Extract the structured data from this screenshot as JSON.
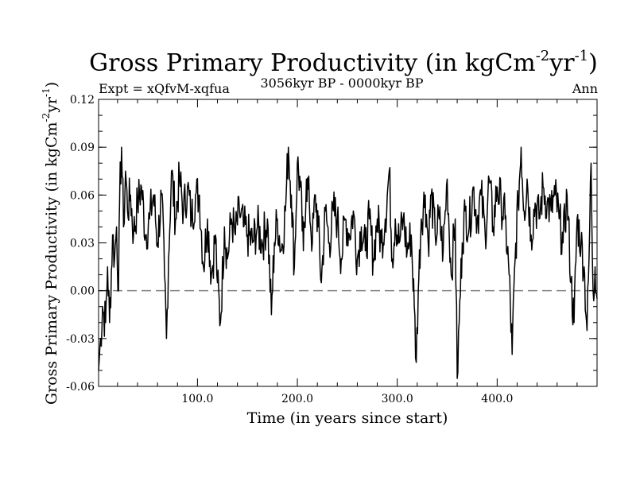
{
  "chart_data": {
    "type": "line",
    "title": {
      "main": "Gross Primary Productivity (in kgCm",
      "sup1": "-2",
      "mid": "yr",
      "sup2": "-1",
      "end": ")"
    },
    "subtitle_left": "Expt = xQfvM-xqfua",
    "subtitle_center": "3056kyr BP - 0000kyr BP",
    "subtitle_right": "Ann",
    "xlabel": "Time (in years since start)",
    "ylabel": {
      "main": "Gross Primary Productivity (in kgCm",
      "sup1": "-2",
      "mid": "yr",
      "sup2": "-1",
      "end": ")"
    },
    "xlim": [
      1,
      500
    ],
    "ylim": [
      -0.06,
      0.12
    ],
    "xticks": [
      100,
      200,
      300,
      400
    ],
    "xtick_labels": [
      "100.0",
      "200.0",
      "300.0",
      "400.0"
    ],
    "yticks": [
      -0.06,
      -0.03,
      0.0,
      0.03,
      0.06,
      0.09,
      0.12
    ],
    "ytick_labels": [
      "-0.06",
      "-0.03",
      "0.00",
      "0.03",
      "0.06",
      "0.09",
      "0.12"
    ],
    "zero_line": {
      "value": 0.0,
      "style": "dashed",
      "color": "#808080"
    },
    "line_color": "#000000",
    "series": [
      {
        "name": "Ann",
        "anchors": [
          [
            1,
            -0.05
          ],
          [
            3,
            -0.03
          ],
          [
            5,
            -0.01
          ],
          [
            8,
            -0.02
          ],
          [
            10,
            0.015
          ],
          [
            12,
            -0.02
          ],
          [
            15,
            0.035
          ],
          [
            17,
            0.02
          ],
          [
            19,
            0.04
          ],
          [
            21,
            0.0
          ],
          [
            22,
            0.055
          ],
          [
            24,
            0.09
          ],
          [
            26,
            0.04
          ],
          [
            28,
            0.075
          ],
          [
            30,
            0.05
          ],
          [
            33,
            0.06
          ],
          [
            36,
            0.035
          ],
          [
            40,
            0.055
          ],
          [
            44,
            0.065
          ],
          [
            48,
            0.035
          ],
          [
            52,
            0.045
          ],
          [
            56,
            0.06
          ],
          [
            60,
            0.03
          ],
          [
            64,
            0.06
          ],
          [
            67,
            0.01
          ],
          [
            69,
            -0.03
          ],
          [
            71,
            0.02
          ],
          [
            74,
            0.075
          ],
          [
            78,
            0.045
          ],
          [
            82,
            0.07
          ],
          [
            86,
            0.05
          ],
          [
            90,
            0.065
          ],
          [
            94,
            0.045
          ],
          [
            98,
            0.06
          ],
          [
            102,
            0.06
          ],
          [
            106,
            0.015
          ],
          [
            110,
            0.045
          ],
          [
            114,
            0.01
          ],
          [
            118,
            0.035
          ],
          [
            120,
            0.005
          ],
          [
            123,
            -0.02
          ],
          [
            127,
            0.04
          ],
          [
            130,
            0.02
          ],
          [
            134,
            0.045
          ],
          [
            138,
            0.035
          ],
          [
            142,
            0.05
          ],
          [
            146,
            0.04
          ],
          [
            150,
            0.035
          ],
          [
            155,
            0.03
          ],
          [
            160,
            0.04
          ],
          [
            165,
            0.03
          ],
          [
            170,
            0.045
          ],
          [
            174,
            -0.015
          ],
          [
            177,
            0.03
          ],
          [
            180,
            0.045
          ],
          [
            184,
            0.025
          ],
          [
            188,
            0.05
          ],
          [
            191,
            0.09
          ],
          [
            194,
            0.06
          ],
          [
            197,
            0.015
          ],
          [
            200,
            0.08
          ],
          [
            203,
            0.065
          ],
          [
            206,
            0.025
          ],
          [
            209,
            0.07
          ],
          [
            212,
            0.055
          ],
          [
            215,
            0.03
          ],
          [
            218,
            0.06
          ],
          [
            221,
            0.04
          ],
          [
            224,
            0.005
          ],
          [
            228,
            0.05
          ],
          [
            232,
            0.03
          ],
          [
            236,
            0.05
          ],
          [
            240,
            0.045
          ],
          [
            244,
            0.02
          ],
          [
            248,
            0.045
          ],
          [
            252,
            0.035
          ],
          [
            256,
            0.05
          ],
          [
            260,
            0.02
          ],
          [
            264,
            0.04
          ],
          [
            268,
            0.025
          ],
          [
            272,
            0.045
          ],
          [
            276,
            0.02
          ],
          [
            280,
            0.045
          ],
          [
            284,
            0.03
          ],
          [
            288,
            0.045
          ],
          [
            292,
            0.075
          ],
          [
            295,
            0.02
          ],
          [
            298,
            0.045
          ],
          [
            302,
            0.03
          ],
          [
            306,
            0.045
          ],
          [
            310,
            0.025
          ],
          [
            314,
            0.035
          ],
          [
            317,
            -0.01
          ],
          [
            319,
            -0.045
          ],
          [
            321,
            0.0
          ],
          [
            324,
            0.045
          ],
          [
            328,
            0.06
          ],
          [
            331,
            0.03
          ],
          [
            334,
            0.06
          ],
          [
            338,
            0.035
          ],
          [
            342,
            0.045
          ],
          [
            346,
            0.025
          ],
          [
            350,
            0.07
          ],
          [
            354,
            0.01
          ],
          [
            358,
            0.045
          ],
          [
            360,
            -0.055
          ],
          [
            362,
            -0.02
          ],
          [
            365,
            0.03
          ],
          [
            368,
            0.05
          ],
          [
            372,
            0.04
          ],
          [
            376,
            0.065
          ],
          [
            380,
            0.045
          ],
          [
            384,
            0.06
          ],
          [
            388,
            0.035
          ],
          [
            392,
            0.07
          ],
          [
            396,
            0.04
          ],
          [
            400,
            0.065
          ],
          [
            404,
            0.055
          ],
          [
            408,
            0.045
          ],
          [
            412,
            0.01
          ],
          [
            415,
            -0.04
          ],
          [
            418,
            0.02
          ],
          [
            421,
            0.055
          ],
          [
            424,
            0.09
          ],
          [
            427,
            0.05
          ],
          [
            430,
            0.07
          ],
          [
            434,
            0.035
          ],
          [
            438,
            0.055
          ],
          [
            442,
            0.045
          ],
          [
            446,
            0.065
          ],
          [
            450,
            0.055
          ],
          [
            454,
            0.05
          ],
          [
            458,
            0.06
          ],
          [
            462,
            0.045
          ],
          [
            466,
            0.03
          ],
          [
            470,
            0.06
          ],
          [
            474,
            0.005
          ],
          [
            477,
            -0.02
          ],
          [
            480,
            0.045
          ],
          [
            484,
            0.03
          ],
          [
            487,
            0.015
          ],
          [
            490,
            -0.025
          ],
          [
            492,
            0.02
          ],
          [
            494,
            0.08
          ],
          [
            496,
            0.0
          ],
          [
            498,
            0.015
          ],
          [
            500,
            -0.005
          ]
        ]
      }
    ]
  }
}
